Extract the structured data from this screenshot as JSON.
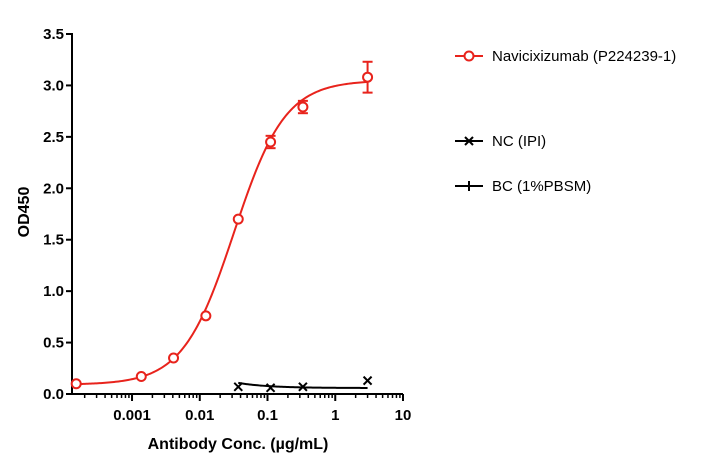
{
  "chart_data": {
    "type": "scatter",
    "title": "",
    "xlabel": "Antibody Conc. (µg/mL)",
    "ylabel": "OD450",
    "x_scale": "log",
    "xlim": [
      0.00013,
      10
    ],
    "ylim": [
      0,
      3.5
    ],
    "x_ticks": [
      0.001,
      0.01,
      0.1,
      1,
      10
    ],
    "x_tick_labels": [
      "0.001",
      "0.01",
      "0.1",
      "1",
      "10"
    ],
    "y_ticks": [
      0,
      0.5,
      1.0,
      1.5,
      2.0,
      2.5,
      3.0,
      3.5
    ],
    "y_tick_labels": [
      "0.0",
      "0.5",
      "1.0",
      "1.5",
      "2.0",
      "2.5",
      "3.0",
      "3.5"
    ],
    "grid": false,
    "legend_position": "right",
    "series": [
      {
        "name": "Navicixizumab (P224239-1)",
        "color": "#e8231c",
        "marker": "circle-open",
        "fit": "4PL",
        "points": [
          {
            "x": 0.00015,
            "y": 0.1,
            "err": 0
          },
          {
            "x": 0.00137,
            "y": 0.17,
            "err": 0
          },
          {
            "x": 0.0041,
            "y": 0.35,
            "err": 0
          },
          {
            "x": 0.0123,
            "y": 0.76,
            "err": 0
          },
          {
            "x": 0.037,
            "y": 1.7,
            "err": 0
          },
          {
            "x": 0.111,
            "y": 2.45,
            "err": 0.06
          },
          {
            "x": 0.333,
            "y": 2.79,
            "err": 0.06
          },
          {
            "x": 3.0,
            "y": 3.08,
            "err": 0.15
          }
        ]
      },
      {
        "name": "NC (IPI)",
        "color": "#000000",
        "marker": "x",
        "fit": "line",
        "points": [
          {
            "x": 0.037,
            "y": 0.07
          },
          {
            "x": 0.111,
            "y": 0.06
          },
          {
            "x": 0.333,
            "y": 0.07
          },
          {
            "x": 3.0,
            "y": 0.13
          }
        ]
      },
      {
        "name": "BC (1%PBSM)",
        "color": "#000000",
        "marker": "plus",
        "fit": "none",
        "points": []
      }
    ]
  }
}
